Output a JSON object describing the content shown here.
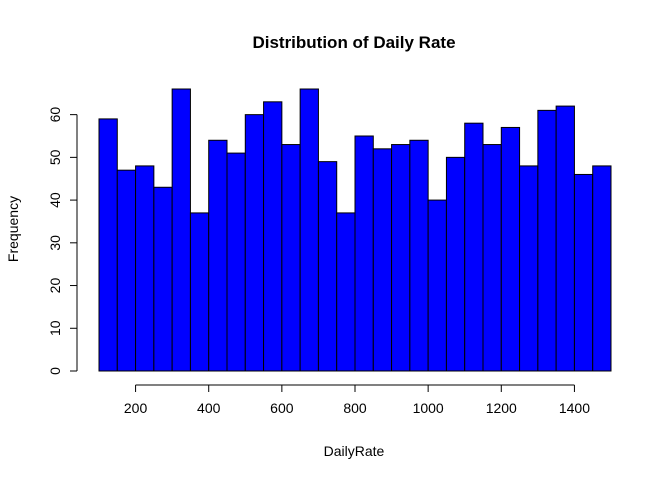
{
  "chart_data": {
    "type": "bar",
    "title": "Distribution of Daily Rate",
    "xlabel": "DailyRate",
    "ylabel": "Frequency",
    "bar_color": "#0000ff",
    "bin_width": 50,
    "x_start": 100,
    "values": [
      59,
      47,
      48,
      43,
      66,
      37,
      54,
      51,
      60,
      63,
      53,
      66,
      49,
      37,
      55,
      52,
      53,
      54,
      40,
      50,
      58,
      53,
      57,
      48,
      61,
      62,
      46,
      48
    ],
    "xlim": [
      100,
      1500
    ],
    "ylim": [
      0,
      66
    ],
    "x_ticks": [
      200,
      400,
      600,
      800,
      1000,
      1200,
      1400
    ],
    "y_ticks": [
      0,
      10,
      20,
      30,
      40,
      50,
      60
    ],
    "grid": false,
    "legend": "none"
  }
}
